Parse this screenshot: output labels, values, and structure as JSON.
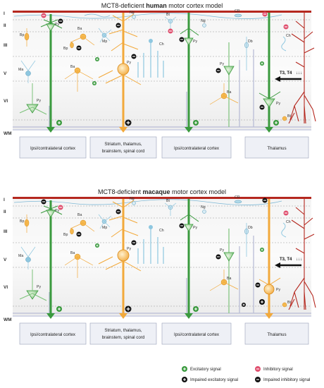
{
  "panels": [
    {
      "title_prefix": "MCT8-deficient ",
      "title_bold": "human",
      "title_suffix": " motor cortex model",
      "cells": {
        "cr": "CR",
        "ng1": "Ng",
        "ng2": "Ng",
        "py_top": "Py",
        "bp1": "Bp",
        "ba1": "Ba",
        "bp2": "Bp",
        "mp": "Mp",
        "py_mid": "Py",
        "bt1": "Bt",
        "db": "Db",
        "py_r": "Py",
        "ch1": "Ch",
        "ma": "Ma",
        "ba2": "Ba",
        "ch2": "Ch",
        "py_v": "Py",
        "py_vi": "Py",
        "ba3": "Ba",
        "py_vr": "Py",
        "bt2": "Bt"
      },
      "thyroid": "T3, T4"
    },
    {
      "title_prefix": "MCT8-deficient ",
      "title_bold": "macaque",
      "title_suffix": " motor cortex model",
      "cells": {
        "cr": "CR",
        "ng1": "Ng",
        "ng2": "Ng",
        "py_top": "Py",
        "bp1": "Bp",
        "ba1": "Ba",
        "bp2": "Bp",
        "mp": "Mp",
        "py_mid": "Py",
        "bt1": "Bt",
        "db": "Db",
        "py_r": "Py",
        "ch1": "Ch",
        "ma": "Ma",
        "ba2": "Ba",
        "ch2": "Ch",
        "py_v": "Py",
        "py_vi": "Py",
        "ba3": "Ba",
        "py_vr": "Py",
        "bt2": "Bt"
      },
      "thyroid": "T3, T4"
    }
  ],
  "layers": [
    "I",
    "II",
    "III",
    "V",
    "VI",
    "WM"
  ],
  "destinations": [
    "Ipsi/contralateral cortex",
    "Striatum, thalamus,",
    "brainstem, spinal cord",
    "Ipsi/contralateral cortex",
    "Thalamus"
  ],
  "legend": {
    "excitatory": "Excitatory signal",
    "impaired_excitatory": "Impaired excitatory signal",
    "inhibitory": "Inhibitory signal",
    "impaired_inhibitory": "Impaired inhibitory signal"
  },
  "colors": {
    "pyramidal_green": "#3a9a3e",
    "axon_orange": "#f2a93b",
    "interneuron_blue": "#8ec7e0",
    "vessel_red": "#b5281f",
    "inhibitory_pink": "#e0506f"
  }
}
